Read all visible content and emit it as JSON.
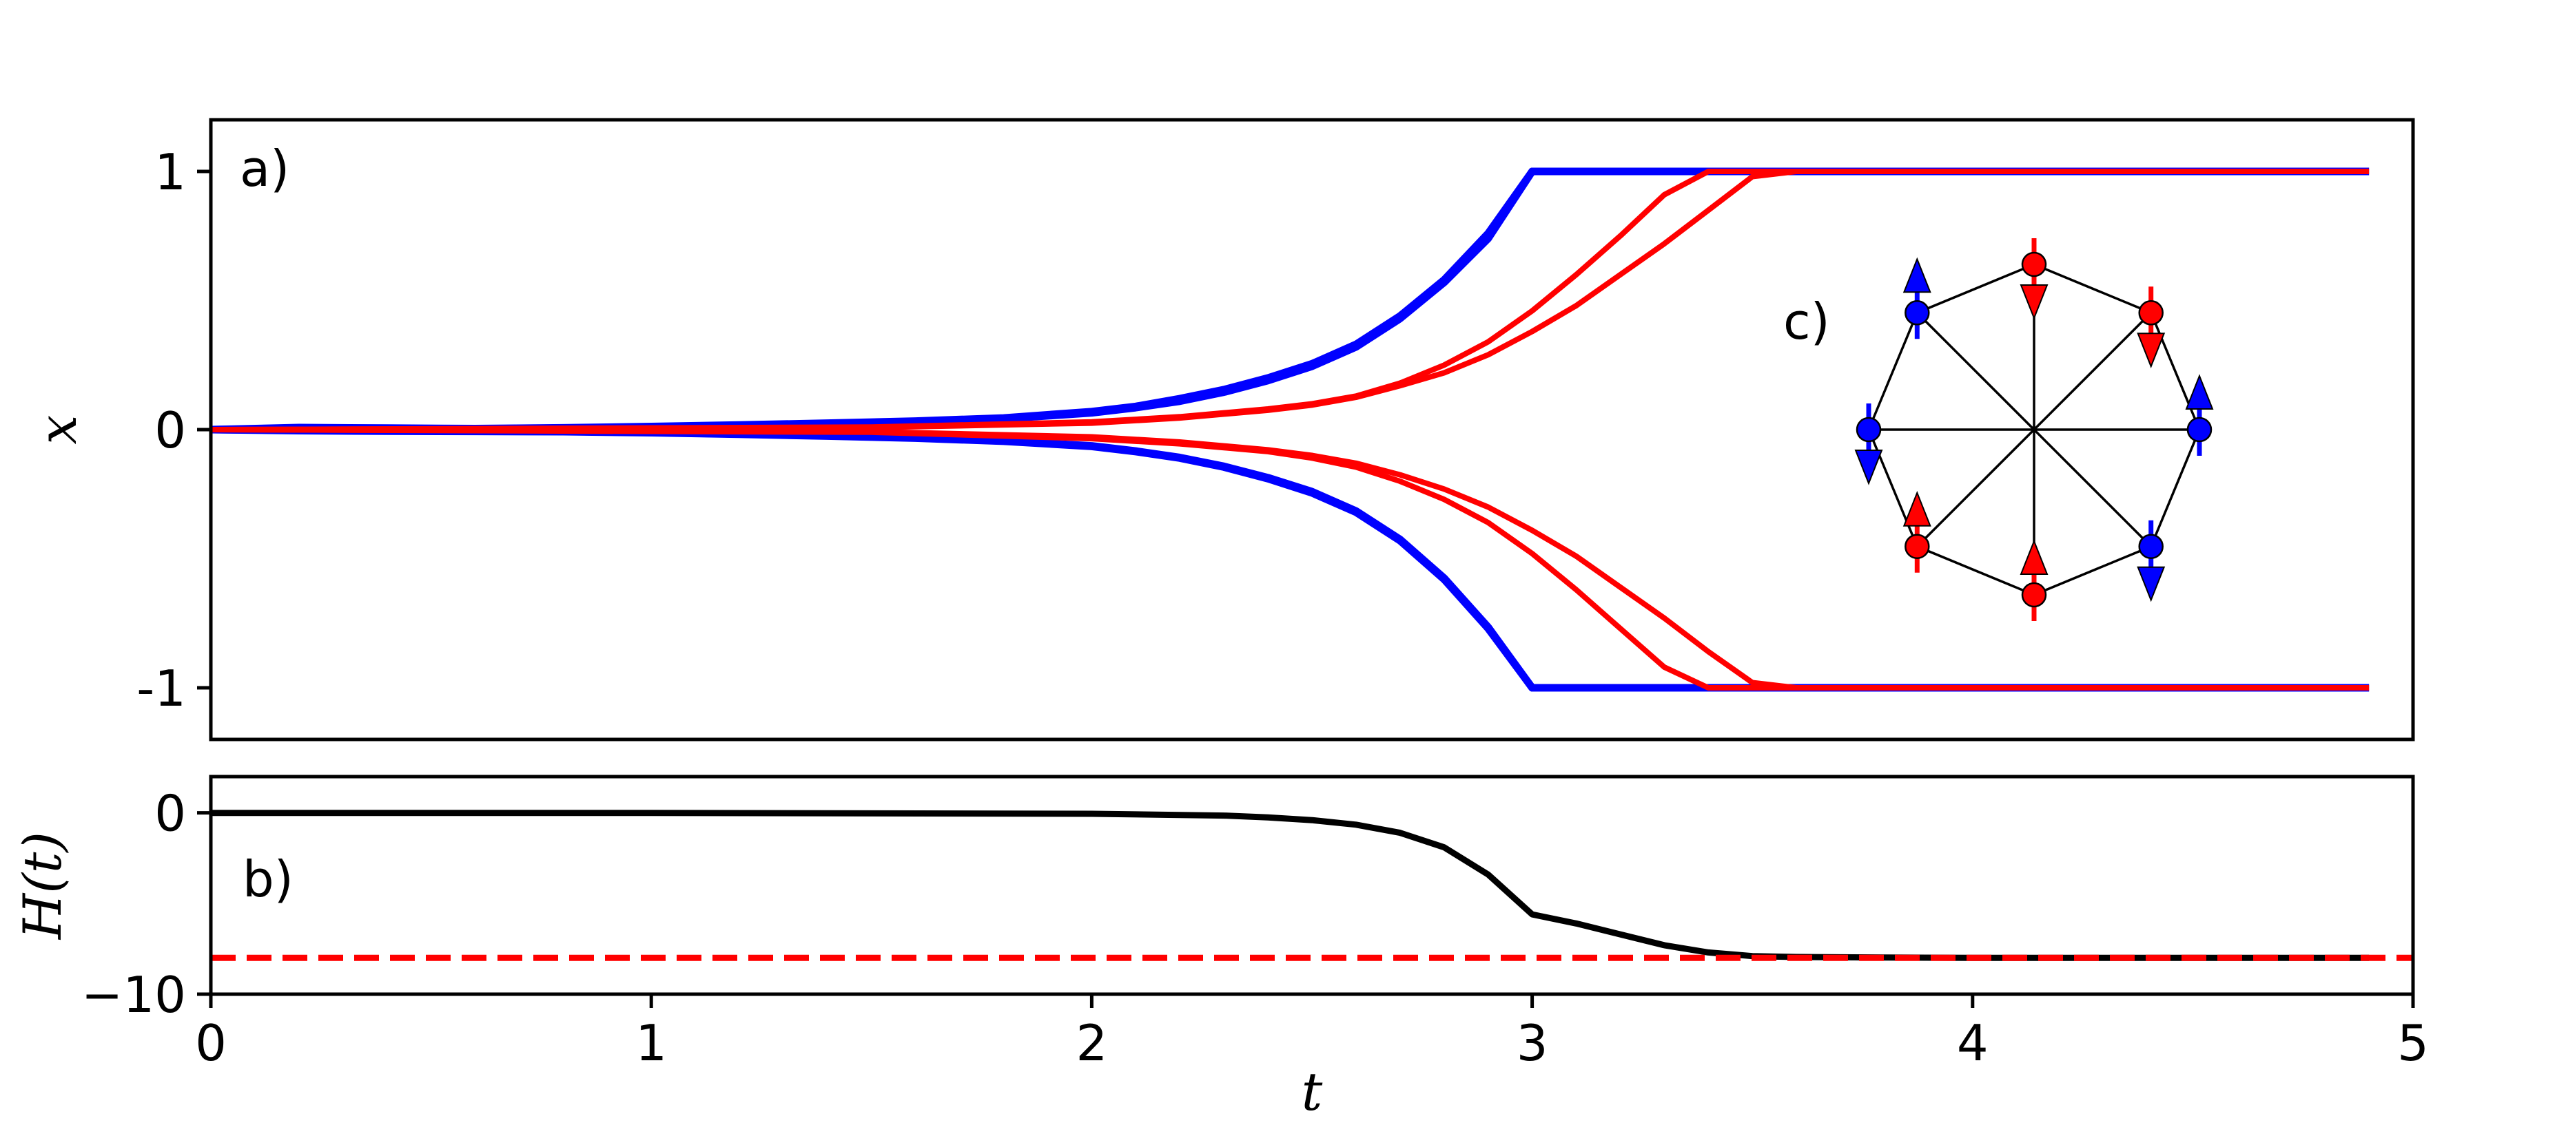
{
  "chart_data": [
    {
      "type": "line",
      "panel_label": "a)",
      "ylabel": "x",
      "xlim": [
        0,
        5
      ],
      "ylim": [
        -1.2,
        1.2
      ],
      "yticks": [
        1,
        0,
        -1
      ],
      "ytick_labels": [
        "1",
        "0",
        "-1"
      ],
      "grid": false,
      "series_colors": [
        "#0000ff",
        "#ff0000"
      ],
      "series": [
        {
          "color": "#0000ff",
          "x": [
            0,
            0.2,
            0.4,
            0.6,
            0.8,
            1.0,
            1.2,
            1.4,
            1.6,
            1.8,
            2.0,
            2.1,
            2.2,
            2.3,
            2.4,
            2.5,
            2.6,
            2.7,
            2.8,
            2.9,
            3.0,
            3.2,
            3.4,
            3.6,
            3.8,
            4.0,
            4.2,
            4.4,
            4.6,
            4.9
          ],
          "values": [
            0,
            0.008,
            0.006,
            0.004,
            0.007,
            0.012,
            0.018,
            0.025,
            0.033,
            0.045,
            0.07,
            0.09,
            0.12,
            0.155,
            0.2,
            0.255,
            0.33,
            0.44,
            0.58,
            0.76,
            1.0,
            1.0,
            1.0,
            1.0,
            1.0,
            1.0,
            1.0,
            1.0,
            1.0,
            1.0
          ]
        },
        {
          "color": "#0000ff",
          "x": [
            0,
            0.2,
            0.4,
            0.6,
            0.8,
            1.0,
            1.2,
            1.4,
            1.6,
            1.8,
            2.0,
            2.1,
            2.2,
            2.3,
            2.4,
            2.5,
            2.6,
            2.7,
            2.8,
            2.9,
            3.0,
            3.2,
            3.4,
            3.6,
            3.8,
            4.0,
            4.2,
            4.4,
            4.6,
            4.9
          ],
          "values": [
            0,
            0.003,
            0.002,
            0.003,
            0.006,
            0.01,
            0.015,
            0.022,
            0.03,
            0.042,
            0.065,
            0.085,
            0.11,
            0.145,
            0.19,
            0.245,
            0.32,
            0.43,
            0.57,
            0.74,
            1.0,
            1.0,
            1.0,
            1.0,
            1.0,
            1.0,
            1.0,
            1.0,
            1.0,
            1.0
          ]
        },
        {
          "color": "#0000ff",
          "x": [
            0,
            0.2,
            0.4,
            0.6,
            0.8,
            1.0,
            1.2,
            1.4,
            1.6,
            1.8,
            2.0,
            2.1,
            2.2,
            2.3,
            2.4,
            2.5,
            2.6,
            2.7,
            2.8,
            2.9,
            3.0,
            3.2,
            3.4,
            3.6,
            3.8,
            4.0,
            4.2,
            4.4,
            4.6,
            4.9
          ],
          "values": [
            0,
            -0.004,
            -0.006,
            -0.007,
            -0.008,
            -0.012,
            -0.018,
            -0.025,
            -0.033,
            -0.045,
            -0.065,
            -0.085,
            -0.11,
            -0.145,
            -0.19,
            -0.245,
            -0.32,
            -0.43,
            -0.58,
            -0.77,
            -1.0,
            -1.0,
            -1.0,
            -1.0,
            -1.0,
            -1.0,
            -1.0,
            -1.0,
            -1.0,
            -1.0
          ]
        },
        {
          "color": "#0000ff",
          "x": [
            0,
            0.2,
            0.4,
            0.6,
            0.8,
            1.0,
            1.2,
            1.4,
            1.6,
            1.8,
            2.0,
            2.1,
            2.2,
            2.3,
            2.4,
            2.5,
            2.6,
            2.7,
            2.8,
            2.9,
            3.0,
            3.2,
            3.4,
            3.6,
            3.8,
            4.0,
            4.2,
            4.4,
            4.6,
            4.9
          ],
          "values": [
            0,
            -0.002,
            -0.004,
            -0.005,
            -0.007,
            -0.011,
            -0.017,
            -0.024,
            -0.032,
            -0.044,
            -0.063,
            -0.083,
            -0.108,
            -0.142,
            -0.186,
            -0.24,
            -0.315,
            -0.425,
            -0.575,
            -0.765,
            -1.0,
            -1.0,
            -1.0,
            -1.0,
            -1.0,
            -1.0,
            -1.0,
            -1.0,
            -1.0,
            -1.0
          ]
        },
        {
          "color": "#ff0000",
          "x": [
            0,
            1.5,
            2.0,
            2.2,
            2.4,
            2.5,
            2.6,
            2.7,
            2.8,
            2.9,
            3.0,
            3.1,
            3.2,
            3.3,
            3.4,
            3.6,
            4.0,
            4.9
          ],
          "values": [
            0,
            0.01,
            0.03,
            0.05,
            0.08,
            0.1,
            0.13,
            0.18,
            0.25,
            0.34,
            0.46,
            0.6,
            0.75,
            0.91,
            1.0,
            1.0,
            1.0,
            1.0
          ]
        },
        {
          "color": "#ff0000",
          "x": [
            0,
            1.5,
            2.0,
            2.2,
            2.4,
            2.5,
            2.6,
            2.7,
            2.8,
            2.9,
            3.0,
            3.1,
            3.2,
            3.3,
            3.4,
            3.5,
            3.6,
            4.0,
            4.9
          ],
          "values": [
            0,
            0.008,
            0.025,
            0.045,
            0.075,
            0.095,
            0.125,
            0.17,
            0.22,
            0.29,
            0.38,
            0.48,
            0.6,
            0.72,
            0.85,
            0.98,
            1.0,
            1.0,
            1.0
          ]
        },
        {
          "color": "#ff0000",
          "x": [
            0,
            1.5,
            2.0,
            2.2,
            2.4,
            2.5,
            2.6,
            2.7,
            2.8,
            2.9,
            3.0,
            3.1,
            3.2,
            3.3,
            3.4,
            3.6,
            4.0,
            4.9
          ],
          "values": [
            0,
            -0.01,
            -0.035,
            -0.055,
            -0.085,
            -0.11,
            -0.145,
            -0.2,
            -0.27,
            -0.36,
            -0.48,
            -0.62,
            -0.77,
            -0.92,
            -1.0,
            -1.0,
            -1.0,
            -1.0
          ]
        },
        {
          "color": "#ff0000",
          "x": [
            0,
            1.5,
            2.0,
            2.2,
            2.4,
            2.5,
            2.6,
            2.7,
            2.8,
            2.9,
            3.0,
            3.1,
            3.2,
            3.3,
            3.4,
            3.5,
            3.6,
            4.0,
            4.9
          ],
          "values": [
            0,
            -0.008,
            -0.028,
            -0.048,
            -0.078,
            -0.1,
            -0.13,
            -0.175,
            -0.23,
            -0.3,
            -0.39,
            -0.49,
            -0.61,
            -0.73,
            -0.86,
            -0.98,
            -1.0,
            -1.0,
            -1.0
          ]
        }
      ]
    },
    {
      "type": "line",
      "panel_label": "b)",
      "xlabel": "t",
      "ylabel": "H(t)",
      "xlim": [
        0,
        5
      ],
      "ylim": [
        -10,
        2
      ],
      "yticks": [
        0,
        -10
      ],
      "ytick_labels": [
        "0",
        "−10"
      ],
      "xticks": [
        0,
        1,
        2,
        3,
        4,
        5
      ],
      "xtick_labels": [
        "0",
        "1",
        "2",
        "3",
        "4",
        "5"
      ],
      "grid": false,
      "series": [
        {
          "color": "#000000",
          "x": [
            0,
            1.0,
            2.0,
            2.3,
            2.4,
            2.5,
            2.6,
            2.7,
            2.8,
            2.9,
            3.0,
            3.1,
            3.2,
            3.3,
            3.4,
            3.5,
            3.6,
            3.8,
            4.0,
            4.5,
            4.9
          ],
          "values": [
            0,
            0,
            -0.05,
            -0.15,
            -0.25,
            -0.4,
            -0.65,
            -1.1,
            -1.9,
            -3.4,
            -5.6,
            -6.1,
            -6.7,
            -7.3,
            -7.7,
            -7.9,
            -7.95,
            -7.98,
            -8.0,
            -8.0,
            -8.0
          ]
        },
        {
          "color": "#ff0000",
          "style": "dashed",
          "x": [
            0,
            5
          ],
          "values": [
            -8,
            -8
          ]
        }
      ]
    }
  ],
  "inset": {
    "label": "c)",
    "spins": [
      {
        "color": "#0000ff",
        "arrow": "up"
      },
      {
        "color": "#ff0000",
        "arrow": "down"
      },
      {
        "color": "#ff0000",
        "arrow": "down"
      },
      {
        "color": "#0000ff",
        "arrow": "up"
      },
      {
        "color": "#0000ff",
        "arrow": "down"
      },
      {
        "color": "#ff0000",
        "arrow": "up"
      },
      {
        "color": "#ff0000",
        "arrow": "up"
      },
      {
        "color": "#0000ff",
        "arrow": "down"
      }
    ]
  }
}
